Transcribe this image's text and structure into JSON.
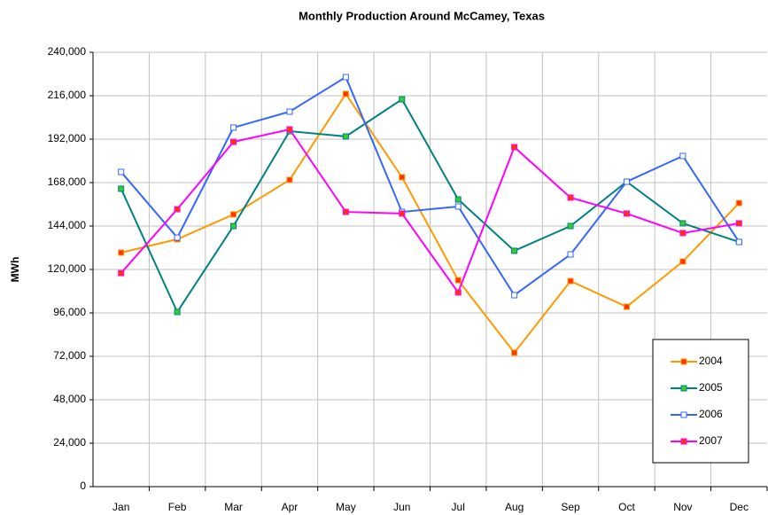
{
  "chart_data": {
    "type": "line",
    "title": "Monthly Production Around McCamey, Texas",
    "y_label": "MWh",
    "categories": [
      "Jan",
      "Feb",
      "Mar",
      "Apr",
      "May",
      "Jun",
      "Jul",
      "Aug",
      "Sep",
      "Oct",
      "Nov",
      "Dec"
    ],
    "ylim": [
      0,
      240000
    ],
    "yticks": [
      0,
      {
        "value": 24000,
        "label": "24,000"
      },
      {
        "value": 48000,
        "label": "48,000"
      },
      {
        "value": 72000,
        "label": "72,000"
      },
      {
        "value": 96000,
        "label": "96,000"
      },
      {
        "value": 120000,
        "label": "120,000"
      },
      {
        "value": 144000,
        "label": "144,000"
      },
      {
        "value": 168000,
        "label": "168,000"
      },
      {
        "value": 192000,
        "label": "192,000"
      },
      {
        "value": 216000,
        "label": "216,000"
      },
      {
        "value": 240000,
        "label": "240,000"
      }
    ],
    "grid": true,
    "legend": "lower right",
    "series": [
      {
        "name": "2004",
        "color": "#ff9900",
        "marker_color": "#ff3300",
        "values": [
          129300,
          136700,
          150400,
          169500,
          217000,
          171000,
          114100,
          74000,
          113600,
          99400,
          124400,
          156700
        ]
      },
      {
        "name": "2005",
        "color": "#008080",
        "marker_color": "#33cc33",
        "values": [
          164600,
          96500,
          144000,
          196400,
          193500,
          214000,
          158700,
          130300,
          144000,
          168500,
          145500,
          135200
        ]
      },
      {
        "name": "2006",
        "color": "#3366ff",
        "marker_color": "#ffffff",
        "values": [
          173900,
          137600,
          198400,
          207200,
          226300,
          151800,
          154800,
          105800,
          128300,
          168500,
          182700,
          135200
        ]
      },
      {
        "name": "2007",
        "color": "#ff00ff",
        "marker_color": "#ff3300",
        "values": [
          118000,
          153300,
          190500,
          197400,
          151800,
          150900,
          107300,
          187600,
          159700,
          150900,
          140100,
          145500
        ]
      }
    ]
  }
}
